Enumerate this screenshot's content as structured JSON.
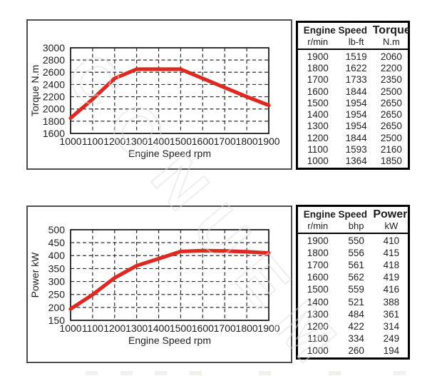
{
  "watermark": {
    "text": "CONUEM"
  },
  "colors": {
    "curve_red": "#dc2a22",
    "grid_line": "#2e2e2e",
    "plot_border": "#111111",
    "panel_border": "#4d4d4d",
    "table_border": "#000000",
    "text": "#1c1c1c"
  },
  "chart_data": [
    {
      "type": "line",
      "title": "",
      "xlabel": "Engine Speed rpm",
      "ylabel": "Torque N.m",
      "x": [
        1000,
        1100,
        1200,
        1300,
        1400,
        1500,
        1600,
        1700,
        1800,
        1900
      ],
      "series": [
        {
          "name": "Torque N.m",
          "values": [
            1850,
            2160,
            2500,
            2650,
            2650,
            2650,
            2500,
            2350,
            2200,
            2060
          ]
        }
      ],
      "ylim": [
        1600,
        3000
      ],
      "ytick_step": 200,
      "xticks": [
        1000,
        1100,
        1200,
        1300,
        1400,
        1500,
        1600,
        1700,
        1800,
        1900
      ],
      "grid": "dashed",
      "legend": "none",
      "line_color": "#dc2a22"
    },
    {
      "type": "line",
      "title": "",
      "xlabel": "Engine Speed rpm",
      "ylabel": "Power kW",
      "x": [
        1000,
        1100,
        1200,
        1300,
        1400,
        1500,
        1600,
        1700,
        1800,
        1900
      ],
      "series": [
        {
          "name": "Power kW",
          "values": [
            194,
            249,
            314,
            361,
            388,
            416,
            419,
            418,
            415,
            410
          ]
        }
      ],
      "ylim": [
        150,
        500
      ],
      "ytick_step": 50,
      "xticks": [
        1000,
        1100,
        1200,
        1300,
        1400,
        1500,
        1600,
        1700,
        1800,
        1900
      ],
      "grid": "dashed",
      "legend": "none",
      "line_color": "#dc2a22"
    }
  ],
  "tables": [
    {
      "header_group_1": "Engine Speed",
      "header_group_2": "Torque",
      "subheaders": [
        "r/min",
        "lb-ft",
        "N.m"
      ],
      "rows": [
        [
          "1900",
          "1519",
          "2060"
        ],
        [
          "1800",
          "1622",
          "2200"
        ],
        [
          "1700",
          "1733",
          "2350"
        ],
        [
          "1600",
          "1844",
          "2500"
        ],
        [
          "1500",
          "1954",
          "2650"
        ],
        [
          "1400",
          "1954",
          "2650"
        ],
        [
          "1300",
          "1954",
          "2650"
        ],
        [
          "1200",
          "1844",
          "2500"
        ],
        [
          "1100",
          "1593",
          "2160"
        ],
        [
          "1000",
          "1364",
          "1850"
        ]
      ]
    },
    {
      "header_group_1": "Engine Speed",
      "header_group_2": "Power",
      "subheaders": [
        "r/min",
        "bhp",
        "kW"
      ],
      "rows": [
        [
          "1900",
          "550",
          "410"
        ],
        [
          "1800",
          "556",
          "415"
        ],
        [
          "1700",
          "561",
          "418"
        ],
        [
          "1600",
          "562",
          "419"
        ],
        [
          "1500",
          "559",
          "416"
        ],
        [
          "1400",
          "521",
          "388"
        ],
        [
          "1300",
          "484",
          "361"
        ],
        [
          "1200",
          "422",
          "314"
        ],
        [
          "1100",
          "334",
          "249"
        ],
        [
          "1000",
          "260",
          "194"
        ]
      ]
    }
  ]
}
